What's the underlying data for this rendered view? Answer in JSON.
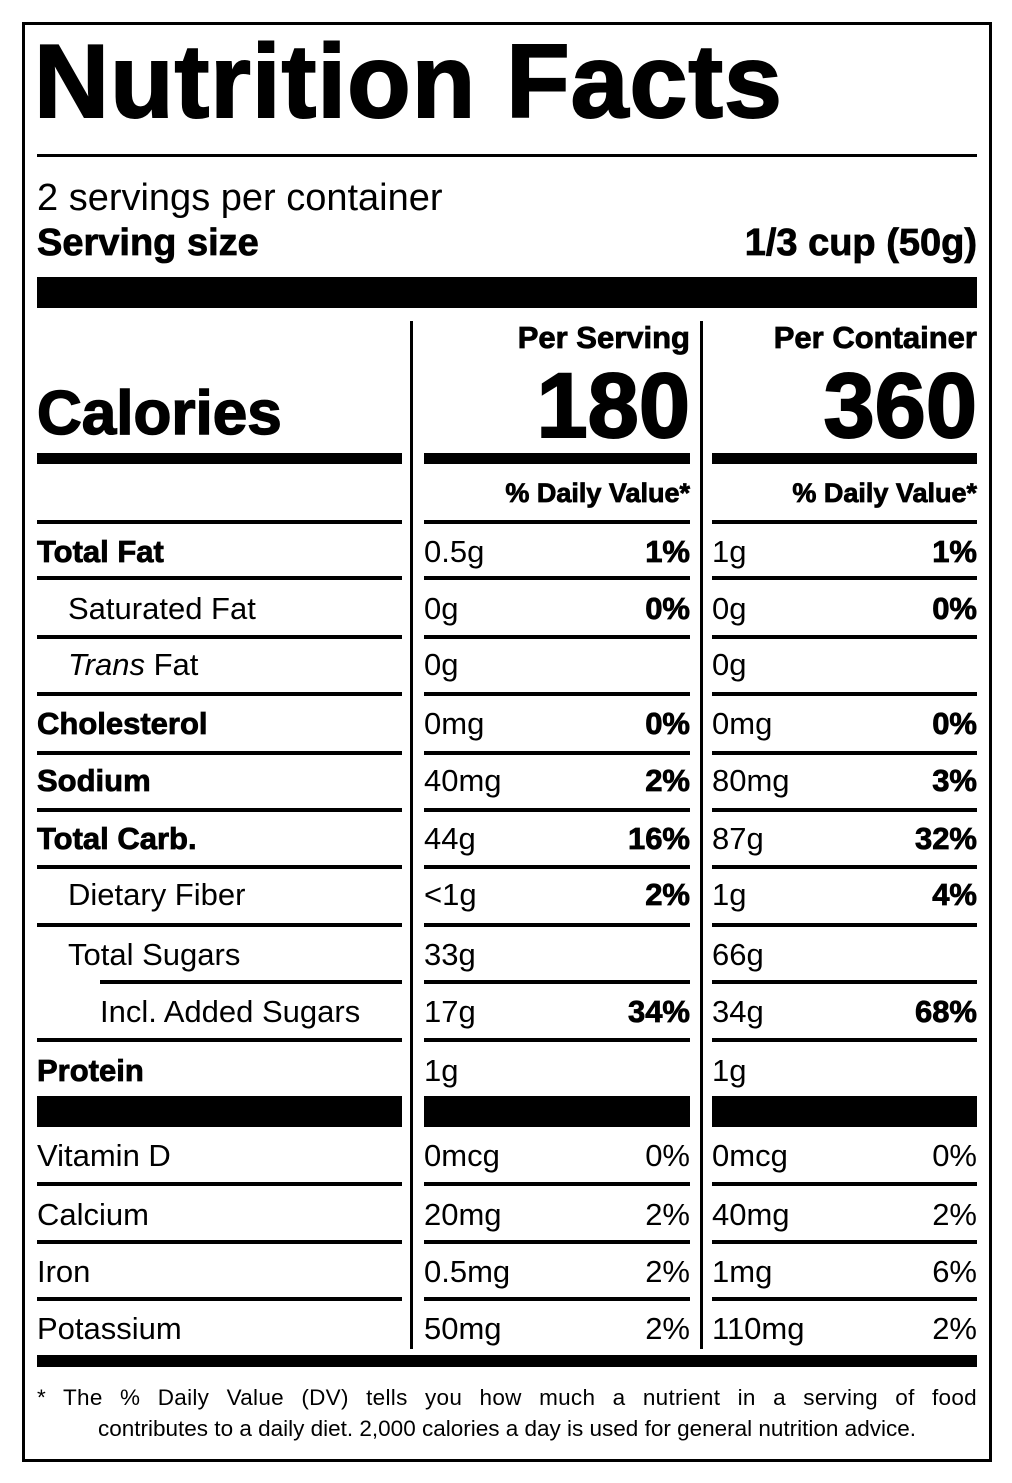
{
  "label": {
    "title": "Nutrition Facts",
    "servings_per_container": "2 servings per container",
    "serving_size_label": "Serving size",
    "serving_size_value": "1/3 cup (50g)",
    "calories_label": "Calories",
    "columns": [
      {
        "header": "Per Serving",
        "calories": "180",
        "dv_header": "% Daily Value*"
      },
      {
        "header": "Per Container",
        "calories": "360",
        "dv_header": "% Daily Value*"
      }
    ],
    "nutrients": [
      {
        "name": "Total Fat",
        "style": "bold",
        "indent": 0,
        "serving": {
          "amount": "0.5g",
          "dv": "1%"
        },
        "container": {
          "amount": "1g",
          "dv": "1%"
        }
      },
      {
        "name": "Saturated Fat",
        "style": "normal",
        "indent": 1,
        "serving": {
          "amount": "0g",
          "dv": "0%"
        },
        "container": {
          "amount": "0g",
          "dv": "0%"
        }
      },
      {
        "name_italic": "Trans",
        "name": " Fat",
        "style": "normal",
        "indent": 1,
        "serving": {
          "amount": "0g",
          "dv": ""
        },
        "container": {
          "amount": "0g",
          "dv": ""
        }
      },
      {
        "name": "Cholesterol",
        "style": "bold",
        "indent": 0,
        "serving": {
          "amount": "0mg",
          "dv": "0%"
        },
        "container": {
          "amount": "0mg",
          "dv": "0%"
        }
      },
      {
        "name": "Sodium",
        "style": "bold",
        "indent": 0,
        "serving": {
          "amount": "40mg",
          "dv": "2%"
        },
        "container": {
          "amount": "80mg",
          "dv": "3%"
        }
      },
      {
        "name": "Total Carb.",
        "style": "bold",
        "indent": 0,
        "serving": {
          "amount": "44g",
          "dv": "16%"
        },
        "container": {
          "amount": "87g",
          "dv": "32%"
        }
      },
      {
        "name": "Dietary Fiber",
        "style": "normal",
        "indent": 1,
        "serving": {
          "amount": "<1g",
          "dv": "2%"
        },
        "container": {
          "amount": "1g",
          "dv": "4%"
        }
      },
      {
        "name": "Total Sugars",
        "style": "normal",
        "indent": 1,
        "serving": {
          "amount": "33g",
          "dv": ""
        },
        "container": {
          "amount": "66g",
          "dv": ""
        }
      },
      {
        "name": "Incl. Added Sugars",
        "style": "normal",
        "indent": 2,
        "serving": {
          "amount": "17g",
          "dv": "34%"
        },
        "container": {
          "amount": "34g",
          "dv": "68%"
        }
      },
      {
        "name": "Protein",
        "style": "bold",
        "indent": 0,
        "serving": {
          "amount": "1g",
          "dv": ""
        },
        "container": {
          "amount": "1g",
          "dv": ""
        }
      }
    ],
    "vitamins": [
      {
        "name": "Vitamin D",
        "serving": {
          "amount": "0mcg",
          "dv": "0%"
        },
        "container": {
          "amount": "0mcg",
          "dv": "0%"
        }
      },
      {
        "name": "Calcium",
        "serving": {
          "amount": "20mg",
          "dv": "2%"
        },
        "container": {
          "amount": "40mg",
          "dv": "2%"
        }
      },
      {
        "name": "Iron",
        "serving": {
          "amount": "0.5mg",
          "dv": "2%"
        },
        "container": {
          "amount": "1mg",
          "dv": "6%"
        }
      },
      {
        "name": "Potassium",
        "serving": {
          "amount": "50mg",
          "dv": "2%"
        },
        "container": {
          "amount": "110mg",
          "dv": "2%"
        }
      }
    ],
    "footnote_line1": "* The % Daily Value (DV) tells you how much a nutrient in a serving of food",
    "footnote_line2": "contributes to a daily diet. 2,000 calories a day is used for general nutrition advice."
  }
}
